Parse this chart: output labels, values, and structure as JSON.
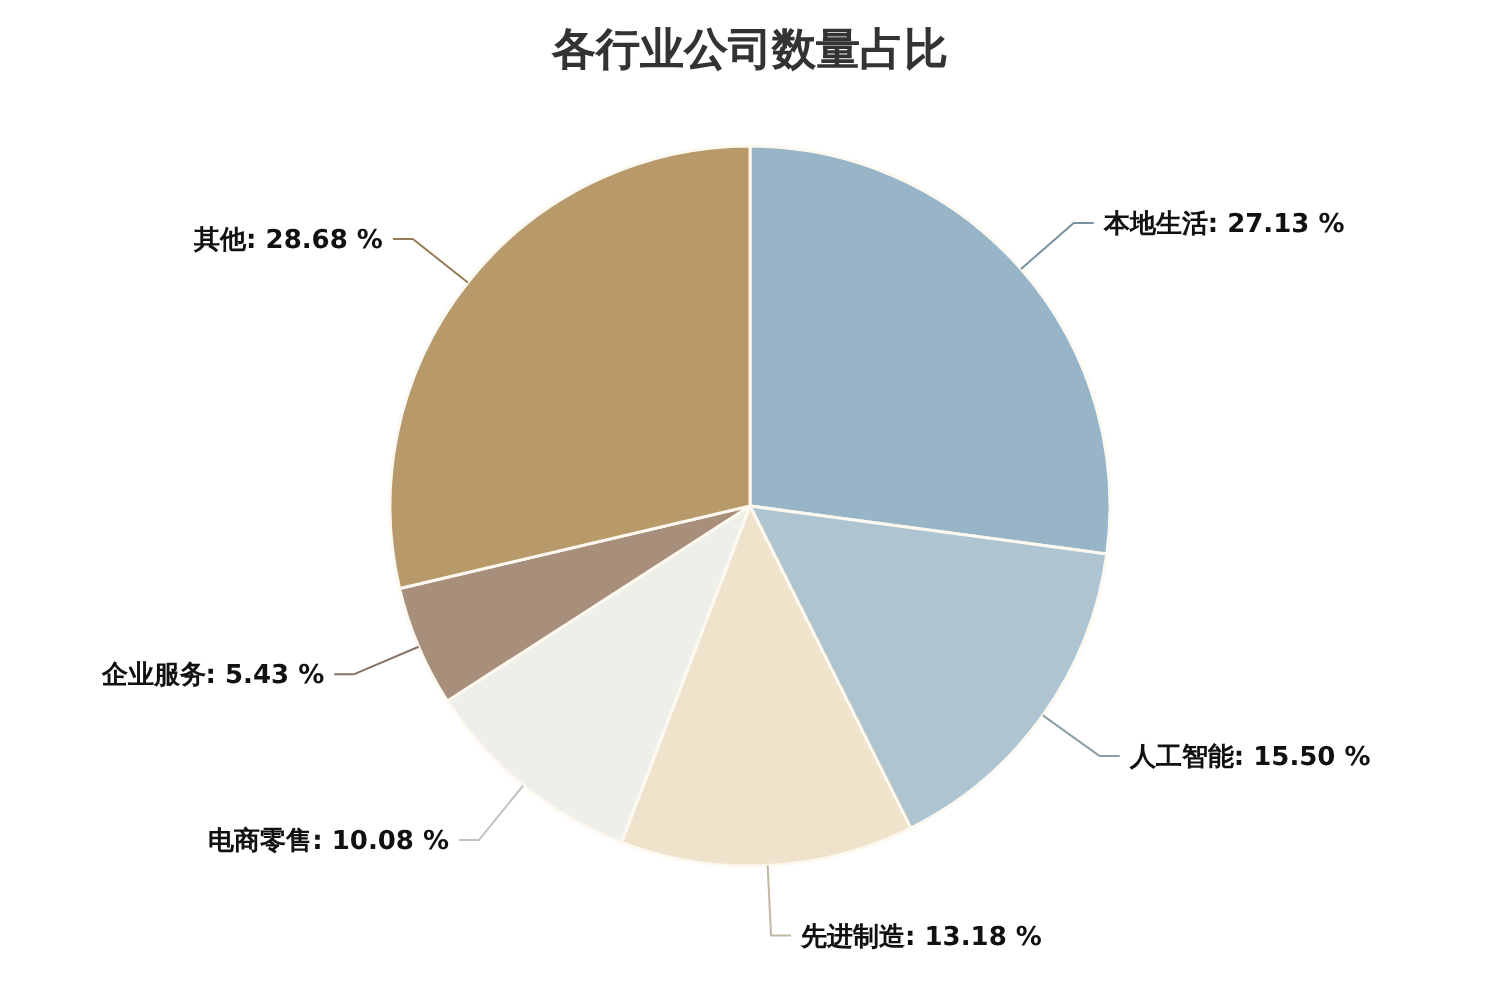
{
  "chart_data": {
    "type": "pie",
    "title": "各行业公司数量占比",
    "categories": [
      "本地生活",
      "人工智能",
      "先进制造",
      "电商零售",
      "企业服务",
      "其他"
    ],
    "values": [
      27.13,
      15.5,
      13.18,
      10.08,
      5.43,
      28.68
    ],
    "colors": [
      "#97b5c6",
      "#aec5d1",
      "#efe3cc",
      "#efefea",
      "#a88f7c",
      "#b89a6a"
    ],
    "value_labels": [
      "27.13 %",
      "15.50 %",
      "13.18 %",
      "10.08 %",
      "5.43 %",
      "28.68 %"
    ]
  }
}
